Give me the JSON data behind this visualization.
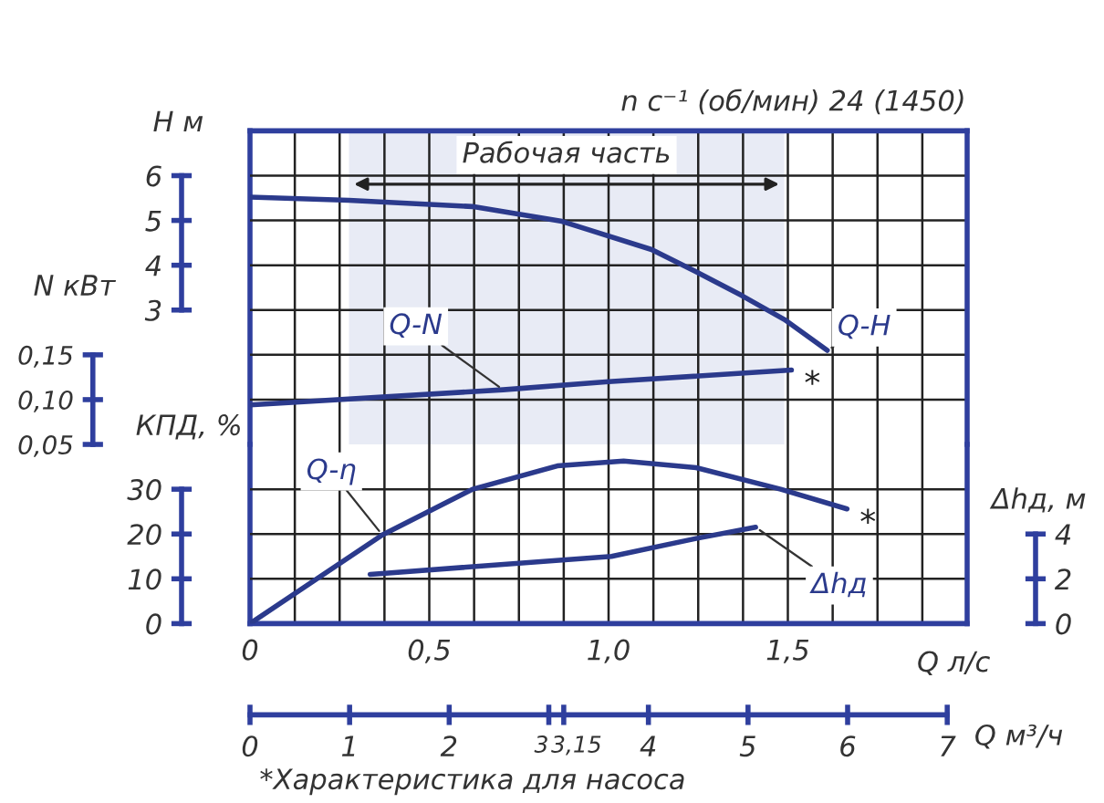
{
  "chart_data": [
    {
      "type": "line",
      "subtitle": "n с⁻¹ (об/мин) 24 (1450)",
      "ylabel": "H м",
      "y2label": "N кВт",
      "xlim": [
        0,
        2
      ],
      "ylim": [
        0,
        7
      ],
      "yticks": [
        3,
        4,
        5,
        6
      ],
      "y2lim": [
        0.05,
        0.4
      ],
      "y2ticks": [
        {
          "value": 0.05,
          "label": "0,05"
        },
        {
          "value": 0.1,
          "label": "0,10"
        },
        {
          "value": 0.15,
          "label": "0,15"
        }
      ],
      "tick_labels": "y",
      "grid": true,
      "series": [
        {
          "name": "Q-H",
          "color": "#2b3a8c",
          "x": [
            0,
            0.276,
            0.62,
            0.87,
            1.12,
            1.24,
            1.37,
            1.49,
            1.61
          ],
          "values": [
            5.52,
            5.45,
            5.31,
            4.98,
            4.35,
            3.87,
            3.33,
            2.79,
            2.1
          ]
        },
        {
          "name": "Q-N",
          "axis": "y2",
          "color": "#2b3a8c",
          "x": [
            0,
            0.706,
            1.0,
            1.51
          ],
          "values": [
            0.094,
            0.111,
            0.12,
            0.133
          ]
        }
      ],
      "bands": [
        {
          "axis": "x",
          "from": 0.276,
          "to": 1.49,
          "label": "Рабочая часть",
          "color": "#e8ebf5"
        }
      ],
      "annotations": [
        "*"
      ]
    },
    {
      "type": "line",
      "xlabel": "Q л/с",
      "x2label": "Q м³/ч",
      "ylabel": "КПД, %",
      "y2label": "Δhд, м",
      "xlim": [
        0,
        2
      ],
      "xticks": [
        0,
        {
          "value": 0.5,
          "label": "0,5"
        },
        {
          "value": 1.0,
          "label": "1,0"
        },
        {
          "value": 1.5,
          "label": "1,5"
        }
      ],
      "x2lim": [
        0,
        7.2
      ],
      "x2ticks": [
        0,
        1,
        2,
        3,
        {
          "value": 3.15,
          "label": "3,15"
        },
        4,
        5,
        6,
        7
      ],
      "ylim": [
        0,
        40
      ],
      "yticks": [
        0,
        10,
        20,
        30
      ],
      "y2lim": [
        0,
        8
      ],
      "y2ticks": [
        0,
        2,
        4
      ],
      "grid": true,
      "series": [
        {
          "name": "Q-η",
          "color": "#2b3a8c",
          "x": [
            0,
            0.369,
            0.621,
            0.857,
            1.042,
            1.244,
            1.48,
            1.665
          ],
          "values": [
            0,
            19.8,
            30.0,
            35.2,
            36.3,
            34.8,
            30.0,
            25.6
          ]
        },
        {
          "name": "Δhд",
          "axis": "y2",
          "color": "#2b3a8c",
          "x": [
            0.335,
            1.008,
            1.244,
            1.41
          ],
          "values": [
            2.2,
            3.0,
            3.8,
            4.3
          ]
        }
      ],
      "annotations": [
        "*",
        "*Характеристика для насоса"
      ]
    }
  ]
}
